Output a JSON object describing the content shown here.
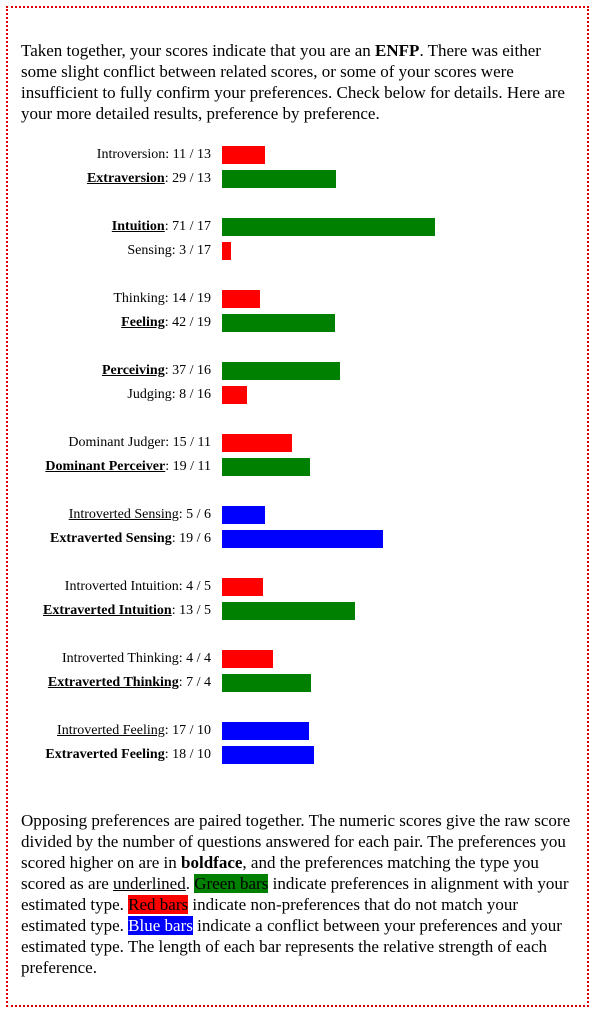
{
  "intro": {
    "pre": "Taken together, your scores indicate that you are an ",
    "type": "ENFP",
    "post": ". There was either some slight conflict between related scores, or some of your scores were insufficient to fully confirm your preferences. Check below for details. Here are your more detailed results, preference by preference."
  },
  "colors": {
    "green": "#008000",
    "red": "#ff0000",
    "blue": "#0000ff"
  },
  "chart_data": {
    "type": "bar",
    "orientation": "horizontal",
    "groups": [
      {
        "rows": [
          {
            "name": "Introversion",
            "score": 11,
            "total": 13,
            "bold": false,
            "underline": false,
            "color": "red"
          },
          {
            "name": "Extraversion",
            "score": 29,
            "total": 13,
            "bold": true,
            "underline": true,
            "color": "green"
          }
        ]
      },
      {
        "rows": [
          {
            "name": "Intuition",
            "score": 71,
            "total": 17,
            "bold": true,
            "underline": true,
            "color": "green"
          },
          {
            "name": "Sensing",
            "score": 3,
            "total": 17,
            "bold": false,
            "underline": false,
            "color": "red"
          }
        ]
      },
      {
        "rows": [
          {
            "name": "Thinking",
            "score": 14,
            "total": 19,
            "bold": false,
            "underline": false,
            "color": "red"
          },
          {
            "name": "Feeling",
            "score": 42,
            "total": 19,
            "bold": true,
            "underline": true,
            "color": "green"
          }
        ]
      },
      {
        "rows": [
          {
            "name": "Perceiving",
            "score": 37,
            "total": 16,
            "bold": true,
            "underline": true,
            "color": "green"
          },
          {
            "name": "Judging",
            "score": 8,
            "total": 16,
            "bold": false,
            "underline": false,
            "color": "red"
          }
        ]
      },
      {
        "rows": [
          {
            "name": "Dominant Judger",
            "score": 15,
            "total": 11,
            "bold": false,
            "underline": false,
            "color": "red"
          },
          {
            "name": "Dominant Perceiver",
            "score": 19,
            "total": 11,
            "bold": true,
            "underline": true,
            "color": "green"
          }
        ]
      },
      {
        "rows": [
          {
            "name": "Introverted Sensing",
            "score": 5,
            "total": 6,
            "bold": false,
            "underline": true,
            "color": "blue"
          },
          {
            "name": "Extraverted Sensing",
            "score": 19,
            "total": 6,
            "bold": true,
            "underline": false,
            "color": "blue"
          }
        ]
      },
      {
        "rows": [
          {
            "name": "Introverted Intuition",
            "score": 4,
            "total": 5,
            "bold": false,
            "underline": false,
            "color": "red"
          },
          {
            "name": "Extraverted Intuition",
            "score": 13,
            "total": 5,
            "bold": true,
            "underline": true,
            "color": "green"
          }
        ]
      },
      {
        "rows": [
          {
            "name": "Introverted Thinking",
            "score": 4,
            "total": 4,
            "bold": false,
            "underline": false,
            "color": "red"
          },
          {
            "name": "Extraverted Thinking",
            "score": 7,
            "total": 4,
            "bold": true,
            "underline": true,
            "color": "green"
          }
        ]
      },
      {
        "rows": [
          {
            "name": "Introverted Feeling",
            "score": 17,
            "total": 10,
            "bold": false,
            "underline": true,
            "color": "blue"
          },
          {
            "name": "Extraverted Feeling",
            "score": 18,
            "total": 10,
            "bold": true,
            "underline": false,
            "color": "blue"
          }
        ]
      }
    ]
  },
  "legend": {
    "t1": "Opposing preferences are paired together. The numeric scores give the raw score divided by the number of questions answered for each pair. The preferences you scored higher on are in ",
    "boldface": "boldface",
    "t2": ", and the preferences matching the type you scored as are ",
    "underlined": "underlined",
    "t3": ". ",
    "green_bars": "Green bars",
    "t4": " indicate preferences in alignment with your estimated type. ",
    "red_bars": "Red bars",
    "t5": " indicate non-preferences that do not match your estimated type. ",
    "blue_bars": "Blue bars",
    "t6": " indicate a conflict between your preferences and your estimated type. The length of each bar represents the relative strength of each preference."
  }
}
